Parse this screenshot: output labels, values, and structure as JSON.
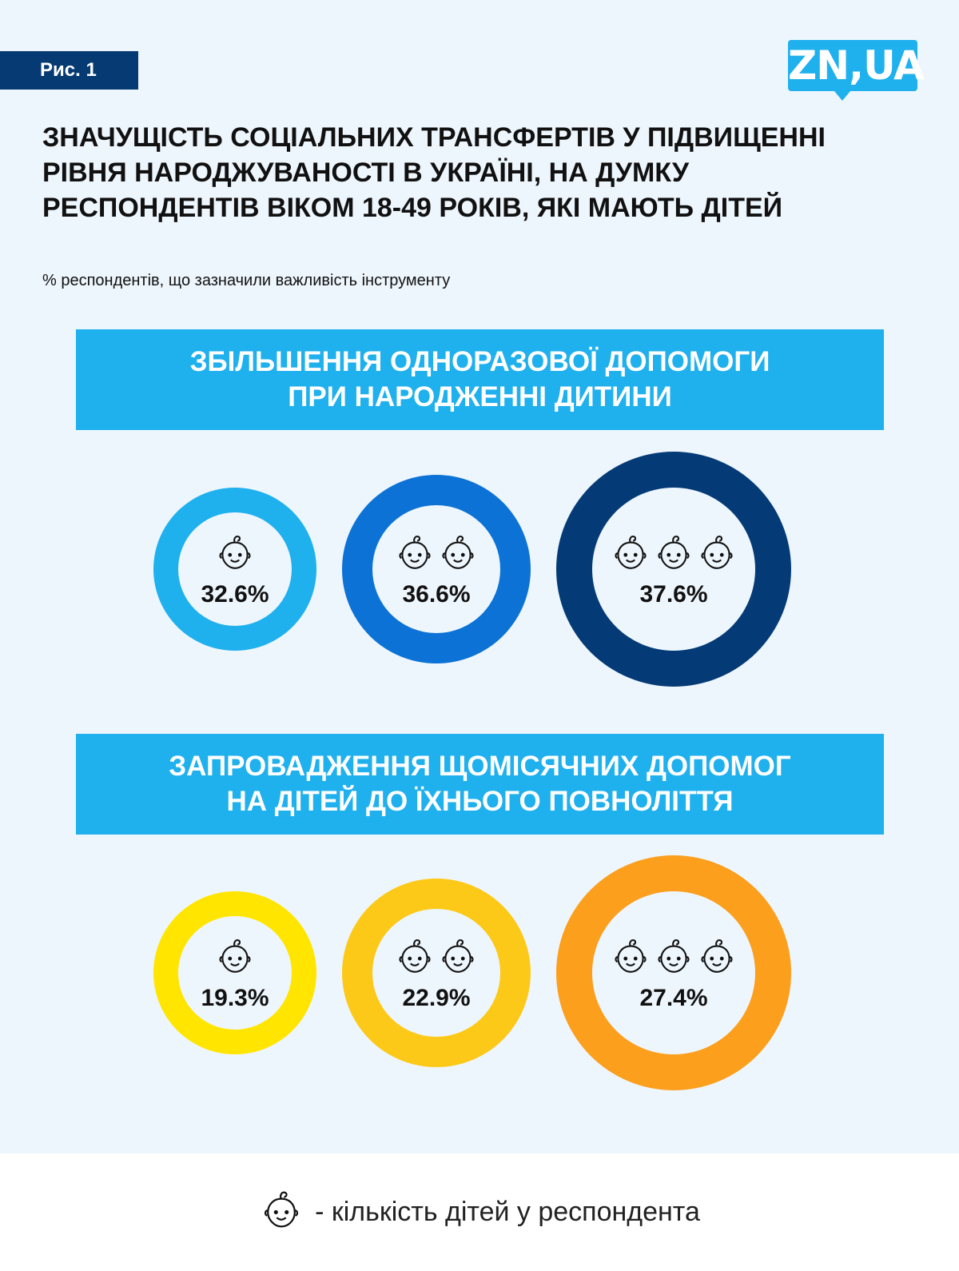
{
  "figure_label": "Рис. 1",
  "logo": "ZN,UA",
  "title": "Значущість соціальних трансфертів у підвищенні рівня народжуваності в Україні, на думку респондентів віком 18-49 років, які мають дітей",
  "subtitle": "% респондентів, що зазначили важливість інструменту",
  "sections": [
    {
      "title_lines": [
        "ЗБІЛЬШЕННЯ ОДНОРАЗОВОЇ ДОПОМОГИ",
        "ПРИ НАРОДЖЕННІ ДИТИНИ"
      ],
      "items": [
        {
          "children": 1,
          "value": "32.6%",
          "color": "#1fb0ee"
        },
        {
          "children": 2,
          "value": "36.6%",
          "color": "#0c72d6"
        },
        {
          "children": 3,
          "value": "37.6%",
          "color": "#043b76"
        }
      ]
    },
    {
      "title_lines": [
        "ЗАПРОВАДЖЕННЯ ЩОМІСЯЧНИХ ДОПОМОГ",
        "НА ДІТЕЙ ДО ЇХНЬОГО ПОВНОЛІТТЯ"
      ],
      "items": [
        {
          "children": 1,
          "value": "19.3%",
          "color": "#ffe500"
        },
        {
          "children": 2,
          "value": "22.9%",
          "color": "#fdc918"
        },
        {
          "children": 3,
          "value": "27.4%",
          "color": "#fb9f1d"
        }
      ]
    }
  ],
  "legend": {
    "icon": "baby-face-icon",
    "text": "- кількість дітей у респондента"
  }
}
